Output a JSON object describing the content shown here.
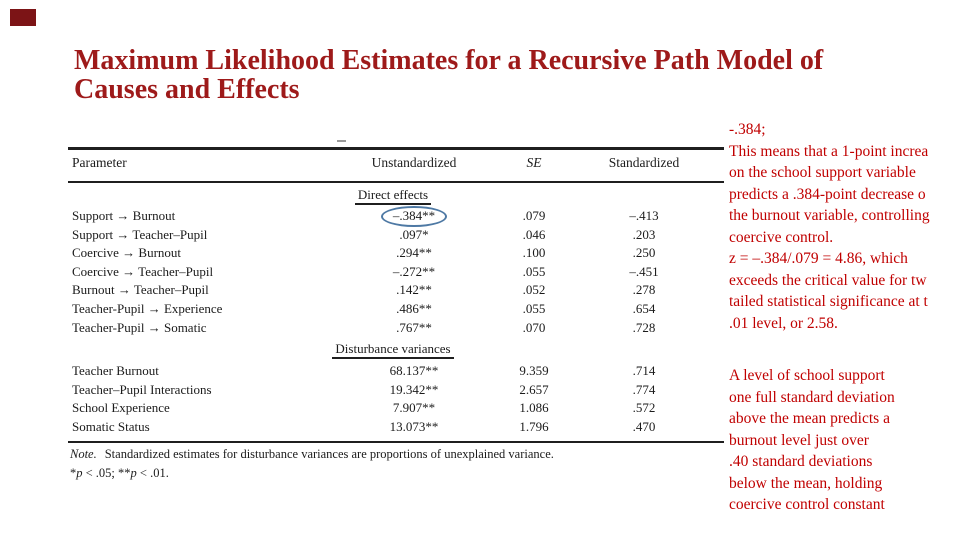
{
  "slide": {
    "accent_color": "#7C1416",
    "title_color": "#9E1A1A",
    "title": {
      "line1": "Maximum Likelihood Estimates for a Recursive Path Model of",
      "line2": "Causes and Effects"
    }
  },
  "table": {
    "col_headers": [
      "Parameter",
      "Unstandardized",
      "SE",
      "Standardized"
    ],
    "sections": [
      {
        "label": "Direct effects",
        "rows": [
          {
            "parameter": "Support → Burnout",
            "unstandardized": "–.384**",
            "se": ".079",
            "standardized": "–.413"
          },
          {
            "parameter": "Support → Teacher–Pupil",
            "unstandardized": ".097*",
            "se": ".046",
            "standardized": ".203"
          },
          {
            "parameter": "Coercive → Burnout",
            "unstandardized": ".294**",
            "se": ".100",
            "standardized": ".250"
          },
          {
            "parameter": "Coercive → Teacher–Pupil",
            "unstandardized": "–.272**",
            "se": ".055",
            "standardized": "–.451"
          },
          {
            "parameter": "Burnout → Teacher–Pupil",
            "unstandardized": ".142**",
            "se": ".052",
            "standardized": ".278"
          },
          {
            "parameter": "Teacher-Pupil → Experience",
            "unstandardized": ".486**",
            "se": ".055",
            "standardized": ".654"
          },
          {
            "parameter": "Teacher-Pupil → Somatic",
            "unstandardized": ".767**",
            "se": ".070",
            "standardized": ".728"
          }
        ]
      },
      {
        "label": "Disturbance variances",
        "rows": [
          {
            "parameter": "Teacher Burnout",
            "unstandardized": "68.137**",
            "se": "9.359",
            "standardized": ".714"
          },
          {
            "parameter": "Teacher–Pupil Interactions",
            "unstandardized": "19.342**",
            "se": "2.657",
            "standardized": ".774"
          },
          {
            "parameter": "School Experience",
            "unstandardized": "7.907**",
            "se": "1.086",
            "standardized": ".572"
          },
          {
            "parameter": "Somatic Status",
            "unstandardized": "13.073**",
            "se": "1.796",
            "standardized": ".470"
          }
        ]
      }
    ],
    "note_label": "Note.",
    "note_text": "Standardized estimates for disturbance variances are proportions of unexplained variance.",
    "sig": {
      "star1": "*",
      "p1": "p",
      "mid": " < .05; **",
      "p2": "p",
      "end": " < .01."
    },
    "highlight_circle_color": "#4E79A4"
  },
  "annotations": {
    "text_color": "#C00000",
    "block1": [
      "-.384;",
      "This means that a 1-point increa",
      "on the school support variable",
      "predicts a .384-point decrease o",
      "the burnout variable, controlling",
      "coercive control.",
      "z = –.384/.079 = 4.86, which",
      "exceeds the critical value for tw",
      "tailed statistical significance at t",
      ".01 level, or 2.58."
    ],
    "block2": [
      "A level of school support",
      "one full standard deviation",
      "above the mean predicts a",
      "burnout level just over",
      ".40 standard deviations",
      "below the mean, holding",
      "coercive control constant"
    ]
  }
}
